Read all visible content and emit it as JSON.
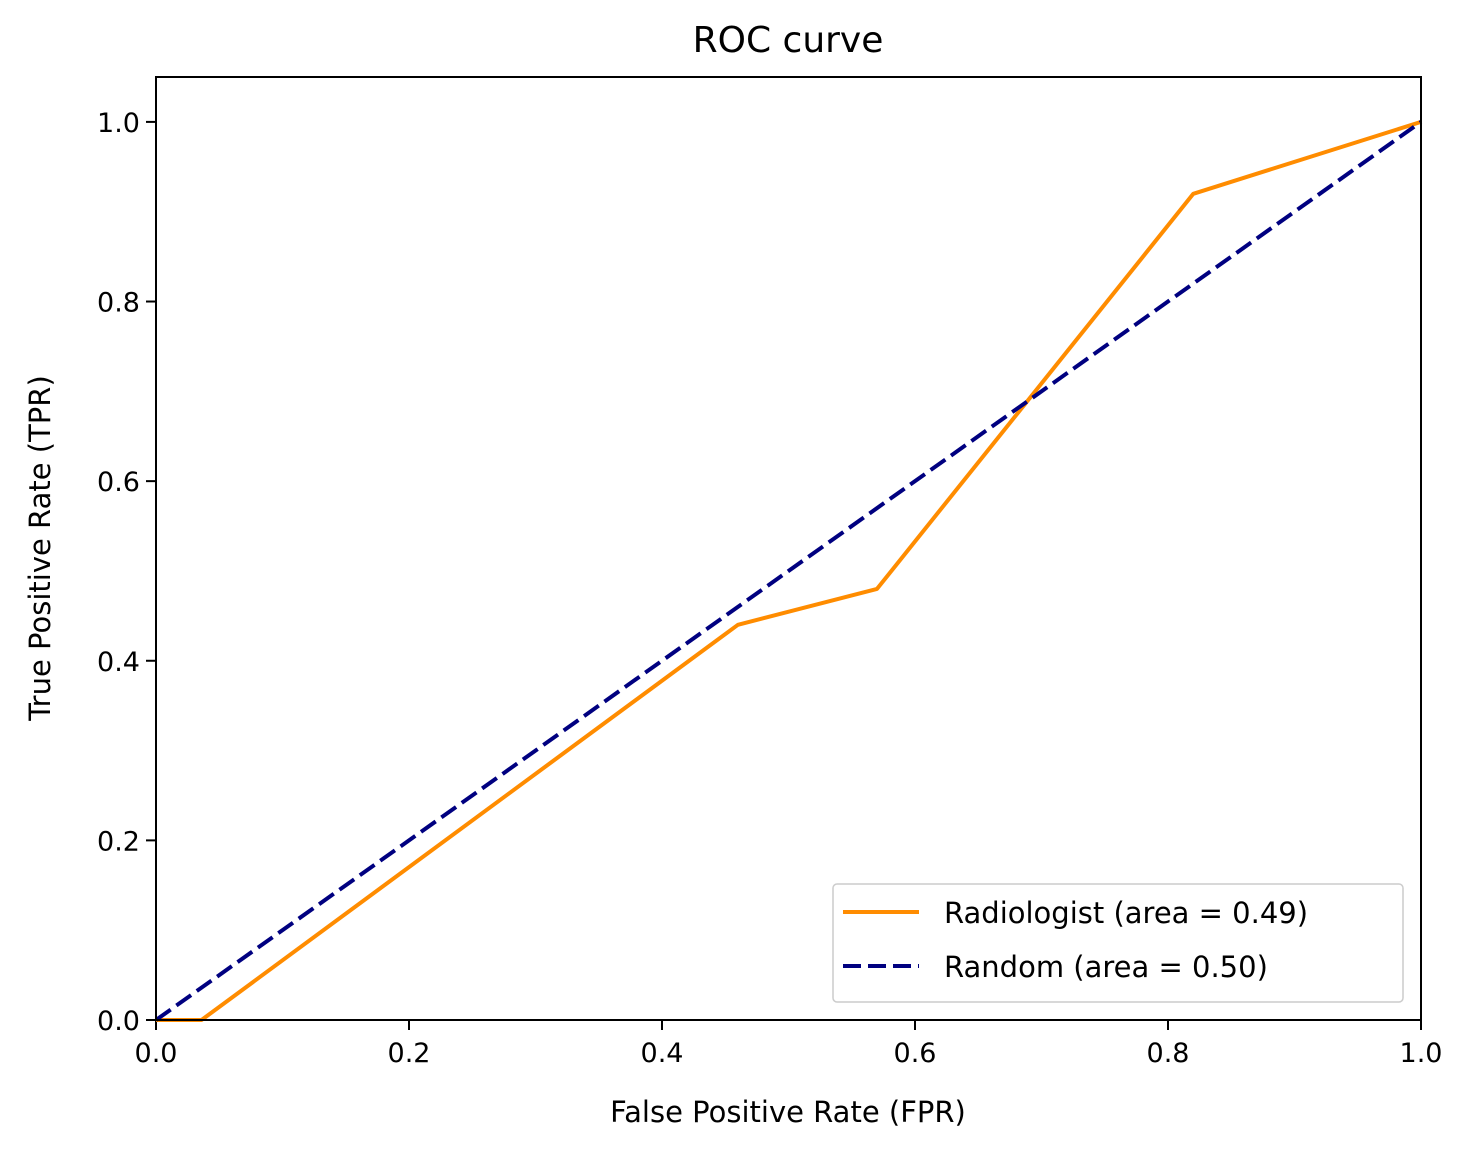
{
  "chart_data": {
    "type": "line",
    "title": "ROC curve",
    "xlabel": "False Positive Rate (FPR)",
    "ylabel": "True Positive Rate (TPR)",
    "xlim": [
      0.0,
      1.0
    ],
    "ylim": [
      0.0,
      1.05
    ],
    "xticks": [
      "0.0",
      "0.2",
      "0.4",
      "0.6",
      "0.8",
      "1.0"
    ],
    "yticks": [
      "0.0",
      "0.2",
      "0.4",
      "0.6",
      "0.8",
      "1.0"
    ],
    "grid": false,
    "legend_position": "lower-right",
    "series": [
      {
        "name": "Radiologist (area = 0.49)",
        "color": "#ff8c00",
        "style": "solid",
        "x": [
          0.0,
          0.036,
          0.46,
          0.57,
          0.82,
          1.0
        ],
        "y": [
          0.0,
          0.0,
          0.44,
          0.48,
          0.92,
          1.0
        ]
      },
      {
        "name": "Random (area = 0.50)",
        "color": "#000080",
        "style": "dashed",
        "x": [
          0.0,
          1.0
        ],
        "y": [
          0.0,
          1.0
        ]
      }
    ]
  }
}
